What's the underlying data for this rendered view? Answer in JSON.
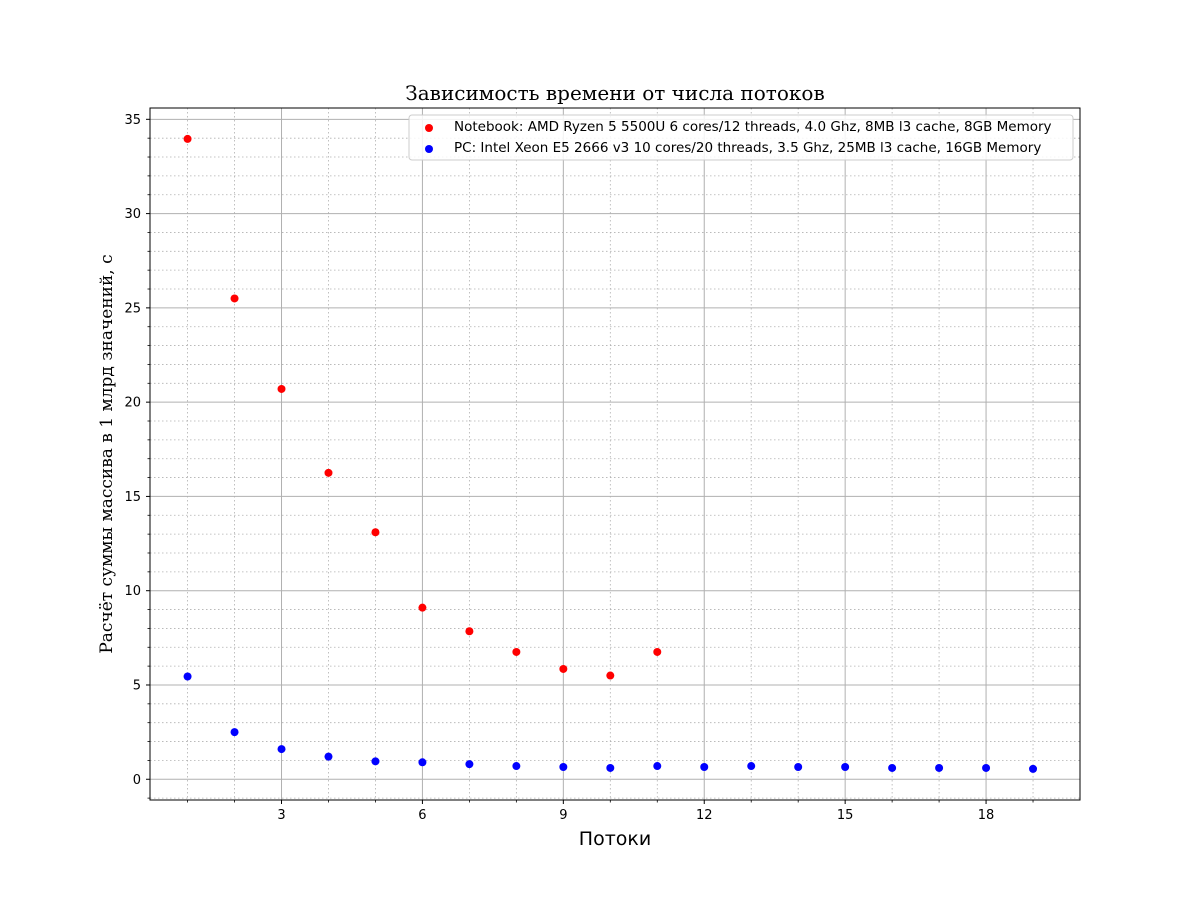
{
  "chart_data": {
    "type": "scatter",
    "title": "Зависимость времени от числа потоков",
    "xlabel": "Потоки",
    "ylabel": "Расчёт суммы массива в 1 млрд значений, с",
    "xlim": [
      0.2,
      20.0
    ],
    "ylim": [
      -1.1,
      35.6
    ],
    "x_major_ticks": [
      3,
      6,
      9,
      12,
      15,
      18
    ],
    "x_minor_ticks": [
      1,
      2,
      4,
      5,
      7,
      8,
      10,
      11,
      13,
      14,
      16,
      17,
      19
    ],
    "y_major_ticks": [
      0,
      5,
      10,
      15,
      20,
      25,
      30,
      35
    ],
    "y_minor_step": 1,
    "grid": true,
    "legend_position": "top-right",
    "series": [
      {
        "name": "Notebook: AMD Ryzen 5 5500U 6 cores/12 threads, 4.0 Ghz, 8MB l3 cache, 8GB Memory",
        "color": "#ff0000",
        "x": [
          1,
          2,
          3,
          4,
          5,
          6,
          7,
          8,
          9,
          10,
          11
        ],
        "y": [
          33.96,
          25.5,
          20.7,
          16.25,
          13.1,
          9.1,
          7.85,
          6.75,
          5.85,
          5.5,
          6.75
        ]
      },
      {
        "name": "PC: Intel Xeon E5 2666 v3 10 cores/20 threads, 3.5 Ghz, 25MB l3 cache, 16GB Memory",
        "color": "#0000ff",
        "x": [
          1,
          2,
          3,
          4,
          5,
          6,
          7,
          8,
          9,
          10,
          11,
          12,
          13,
          14,
          15,
          16,
          17,
          18,
          19
        ],
        "y": [
          5.45,
          2.5,
          1.6,
          1.2,
          0.95,
          0.9,
          0.8,
          0.7,
          0.65,
          0.6,
          0.7,
          0.65,
          0.7,
          0.65,
          0.65,
          0.6,
          0.6,
          0.6,
          0.55
        ]
      }
    ]
  }
}
